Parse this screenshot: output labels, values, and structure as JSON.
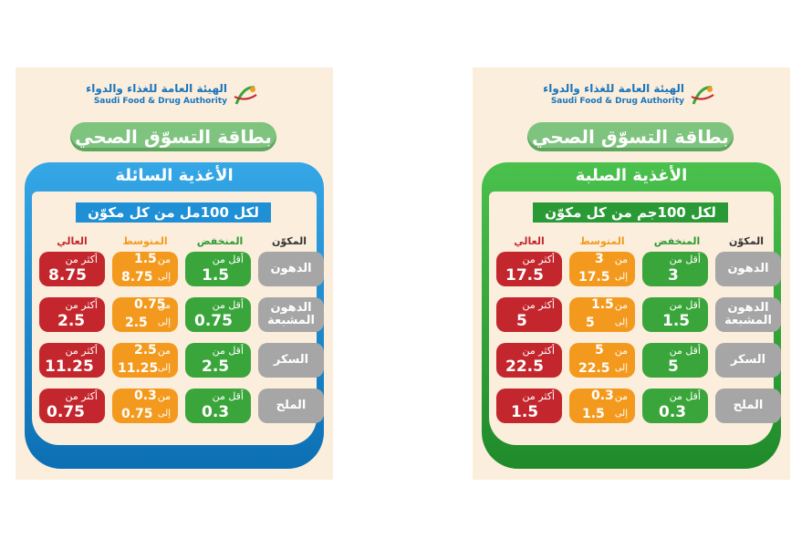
{
  "logo": {
    "arabic": "الهيئة العامة للغذاء والدواء",
    "english": "Saudi Food & Drug Authority"
  },
  "title": "بطاقة التسوّق الصحي",
  "col_ingredient": "المكوّن",
  "col_low": "المنخفض",
  "col_mid": "المتوسط",
  "col_high": "العالي",
  "less_than": "أقل من",
  "from": "من",
  "to": "إلى",
  "more_than": "أكثر من",
  "gram": "جم",
  "rows": [
    "الدهون",
    "الدهون المشبعة",
    "السكر",
    "الملح"
  ],
  "colors": {
    "low": "#3aa53a",
    "mid": "#f39a1e",
    "high": "#c3262c",
    "ingredient": "#a6a6a6",
    "liquid": "#0c6fb4",
    "solid": "#1f8a2a"
  },
  "cards": [
    {
      "category": "الأغذية السائلة",
      "per": "لكل 100مل من كل مكوّن",
      "values": [
        {
          "low": "1.5",
          "mid_from": "1.5",
          "mid_to": "8.75",
          "high": "8.75"
        },
        {
          "low": "0.75",
          "mid_from": "0.75",
          "mid_to": "2.5",
          "high": "2.5"
        },
        {
          "low": "2.5",
          "mid_from": "2.5",
          "mid_to": "11.25",
          "high": "11.25"
        },
        {
          "low": "0.3",
          "mid_from": "0.3",
          "mid_to": "0.75",
          "high": "0.75"
        }
      ]
    },
    {
      "category": "الأغذية الصلبة",
      "per": "لكل 100جم من كل مكوّن",
      "values": [
        {
          "low": "3",
          "mid_from": "3",
          "mid_to": "17.5",
          "high": "17.5"
        },
        {
          "low": "1.5",
          "mid_from": "1.5",
          "mid_to": "5",
          "high": "5"
        },
        {
          "low": "5",
          "mid_from": "5",
          "mid_to": "22.5",
          "high": "22.5"
        },
        {
          "low": "0.3",
          "mid_from": "0.3",
          "mid_to": "1.5",
          "high": "1.5"
        }
      ]
    }
  ]
}
